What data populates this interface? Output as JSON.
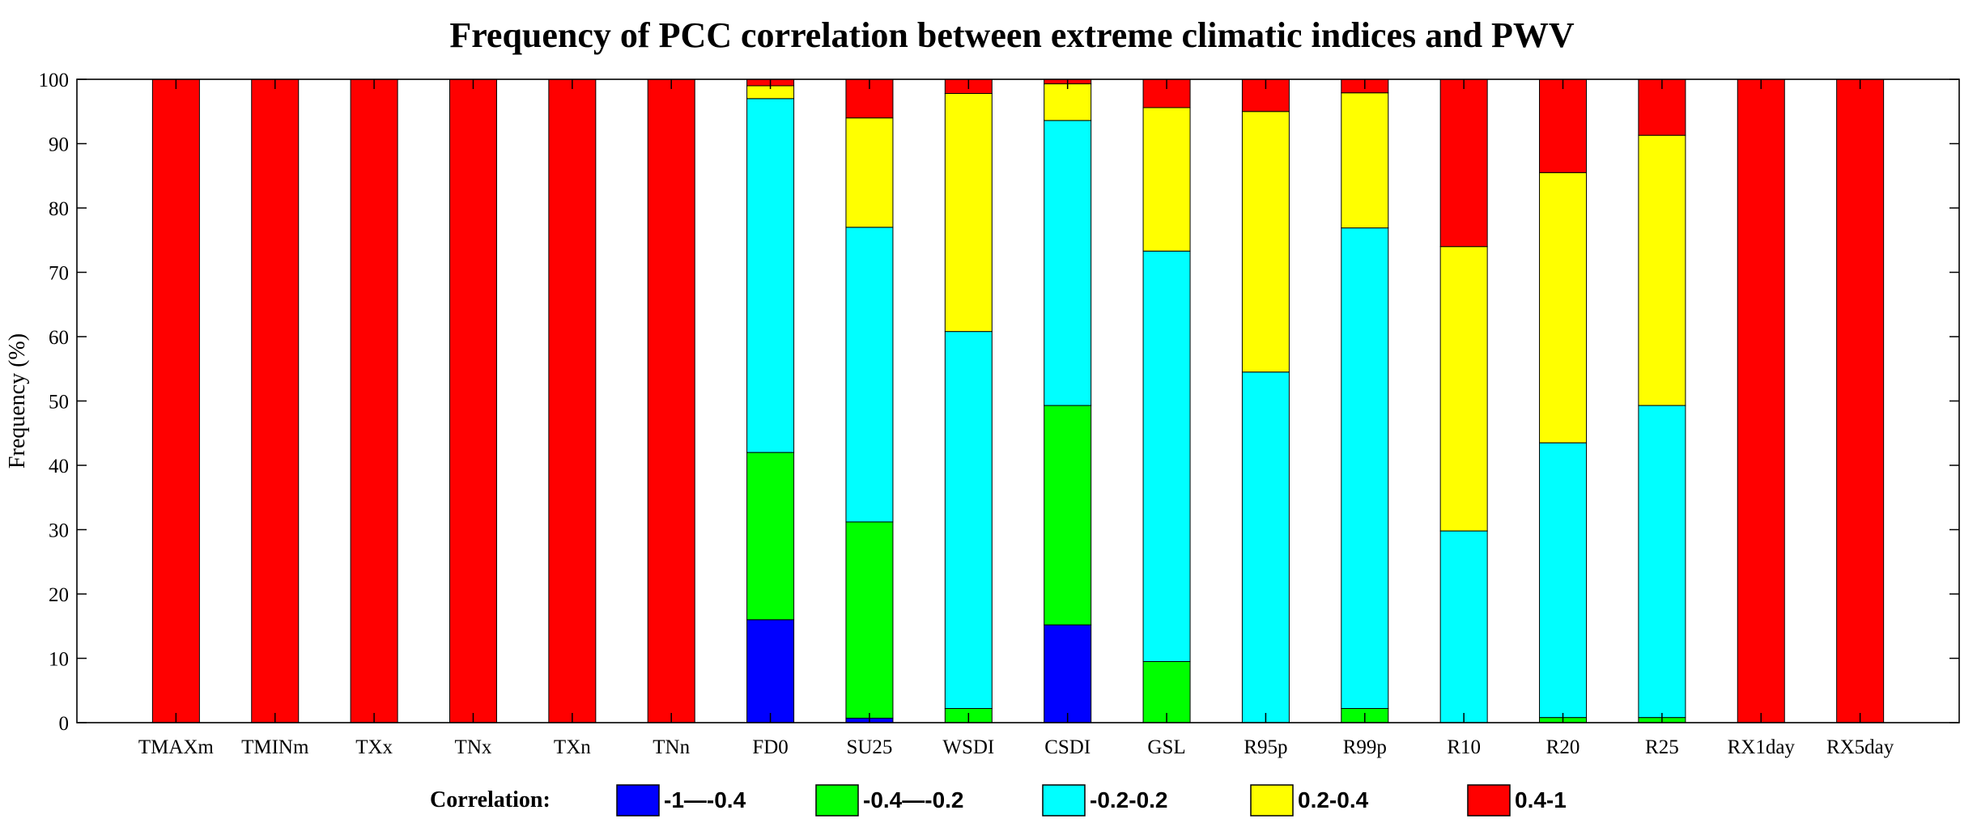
{
  "chart_data": {
    "type": "bar",
    "stacked": true,
    "title": "Frequency of PCC correlation between extreme climatic indices and PWV",
    "xlabel": "",
    "ylabel": "Frequency (%)",
    "ylim": [
      0,
      100
    ],
    "yticks": [
      0,
      10,
      20,
      30,
      40,
      50,
      60,
      70,
      80,
      90,
      100
    ],
    "grid": false,
    "legend_position": "bottom",
    "legend_title": "Correlation:",
    "categories": [
      "TMAXm",
      "TMINm",
      "TXx",
      "TNx",
      "TXn",
      "TNn",
      "FD0",
      "SU25",
      "WSDI",
      "CSDI",
      "GSL",
      "R95p",
      "R99p",
      "R10",
      "R20",
      "R25",
      "RX1day",
      "RX5day"
    ],
    "series": [
      {
        "name": "-1—-0.4",
        "color": "#0000ff",
        "values": [
          0,
          0,
          0,
          0,
          0,
          0,
          16,
          0.7,
          0,
          15.2,
          0,
          0,
          0,
          0,
          0,
          0,
          0,
          0
        ]
      },
      {
        "name": "-0.4—-0.2",
        "color": "#00ff00",
        "values": [
          0,
          0,
          0,
          0,
          0,
          0,
          26,
          30.5,
          2.2,
          34.1,
          9.5,
          0,
          2.2,
          0,
          0.8,
          0.8,
          0,
          0
        ]
      },
      {
        "name": "-0.2-0.2",
        "color": "#00ffff",
        "values": [
          0,
          0,
          0,
          0,
          0,
          0,
          55,
          45.8,
          58.6,
          44.3,
          63.8,
          54.5,
          74.7,
          29.8,
          42.7,
          48.5,
          0,
          0
        ]
      },
      {
        "name": "0.2-0.4",
        "color": "#ffff00",
        "values": [
          0,
          0,
          0,
          0,
          0,
          0,
          2,
          17,
          37,
          5.7,
          22.3,
          40.5,
          21,
          44.2,
          42,
          42,
          0,
          0
        ]
      },
      {
        "name": "0.4-1",
        "color": "#ff0000",
        "values": [
          100,
          100,
          100,
          100,
          100,
          100,
          1,
          6,
          2.2,
          0.7,
          4.4,
          5,
          2.1,
          26,
          14.5,
          8.7,
          100,
          100
        ]
      }
    ]
  }
}
